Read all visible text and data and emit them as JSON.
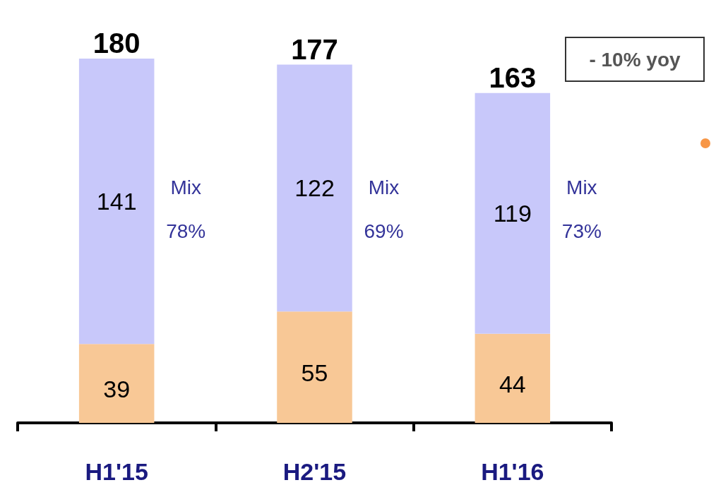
{
  "chart_data": {
    "type": "bar",
    "stacked": true,
    "categories": [
      "H1'15",
      "H2'15",
      "H1'16"
    ],
    "series": [
      {
        "color": "#f8c896",
        "values": [
          39,
          55,
          44
        ]
      },
      {
        "color": "#c8c8fa",
        "values": [
          141,
          122,
          119
        ]
      }
    ],
    "data_labels": true,
    "totals": [
      "180",
      "177",
      "163"
    ],
    "grid": false,
    "annotations": [
      "Mix\n78%",
      "Mix\n69%",
      "Mix\n73%",
      "- 10% yoy"
    ]
  }
}
